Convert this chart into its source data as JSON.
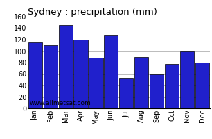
{
  "title": "Sydney : precipitation (mm)",
  "months": [
    "Jan",
    "Feb",
    "Mar",
    "Apr",
    "May",
    "Jun",
    "Jul",
    "Aug",
    "Sep",
    "Oct",
    "Nov",
    "Dec"
  ],
  "values": [
    115,
    110,
    145,
    120,
    88,
    127,
    53,
    90,
    60,
    77,
    100,
    80
  ],
  "bar_color": "#2020cc",
  "bar_edge_color": "#000000",
  "ylim": [
    0,
    160
  ],
  "yticks": [
    0,
    20,
    40,
    60,
    80,
    100,
    120,
    140,
    160
  ],
  "grid_color": "#bbbbbb",
  "background_color": "#ffffff",
  "watermark": "www.allmetsat.com",
  "title_fontsize": 9.5,
  "tick_fontsize": 7,
  "watermark_fontsize": 6.5
}
